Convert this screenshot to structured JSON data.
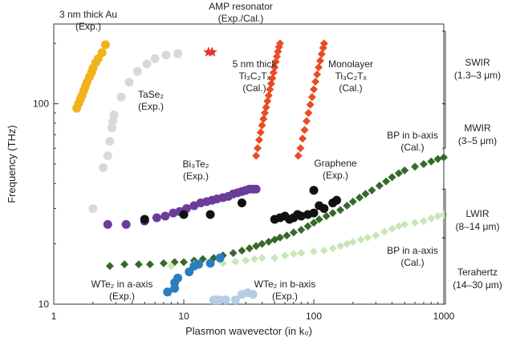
{
  "chart_data": {
    "type": "scatter",
    "xlabel": "Plasmon wavevector (in k₀)",
    "ylabel": "Frequency (THz)",
    "x_scale": "log",
    "y_scale": "log",
    "xlim": [
      1,
      1000
    ],
    "ylim": [
      10,
      250
    ],
    "x_ticks": [
      "1",
      "10",
      "100",
      "1000"
    ],
    "y_ticks": [
      "10",
      "100"
    ],
    "series": [
      {
        "label_lines": [
          "3 nm thick Au",
          "(Exp.)"
        ],
        "marker": "circle",
        "color": "#f2b21a",
        "points": [
          [
            1.5,
            95
          ],
          [
            1.55,
            100
          ],
          [
            1.6,
            105
          ],
          [
            1.65,
            110
          ],
          [
            1.7,
            116
          ],
          [
            1.75,
            122
          ],
          [
            1.8,
            128
          ],
          [
            1.88,
            136
          ],
          [
            1.95,
            143
          ],
          [
            2.0,
            150
          ],
          [
            2.1,
            160
          ],
          [
            2.2,
            168
          ],
          [
            2.35,
            180
          ],
          [
            2.5,
            197
          ]
        ]
      },
      {
        "label_lines": [
          "TaSe₂",
          "(Exp.)"
        ],
        "marker": "circle",
        "color": "#d9d9d9",
        "points": [
          [
            2.0,
            30
          ],
          [
            2.4,
            48
          ],
          [
            2.6,
            55
          ],
          [
            2.7,
            65
          ],
          [
            2.8,
            76
          ],
          [
            2.85,
            82
          ],
          [
            2.9,
            88
          ],
          [
            3.3,
            108
          ],
          [
            3.8,
            128
          ],
          [
            4.4,
            145
          ],
          [
            5.2,
            158
          ],
          [
            6.0,
            168
          ],
          [
            7.3,
            175
          ],
          [
            9,
            178
          ]
        ]
      },
      {
        "label_lines": [
          "AMP resonator",
          "(Exp./Cal.)"
        ],
        "marker": "star",
        "color": "#e8322c",
        "points": [
          [
            15.5,
            181
          ],
          [
            16.5,
            181
          ]
        ]
      },
      {
        "label_lines": [
          "5 nm thick",
          "Ti₃C₂Tₓ",
          "(Cal.)"
        ],
        "marker": "diamond",
        "color": "#ea4b24",
        "points": [
          [
            36,
            55
          ],
          [
            37,
            60
          ],
          [
            38,
            66
          ],
          [
            39,
            72
          ],
          [
            40,
            78
          ],
          [
            41,
            84
          ],
          [
            42,
            90
          ],
          [
            43,
            96
          ],
          [
            44,
            103
          ],
          [
            45,
            110
          ],
          [
            46,
            118
          ],
          [
            47,
            126
          ],
          [
            48,
            134
          ],
          [
            49,
            143
          ],
          [
            50,
            152
          ],
          [
            51,
            162
          ],
          [
            52,
            172
          ],
          [
            53,
            182
          ],
          [
            54,
            192
          ],
          [
            55,
            200
          ]
        ]
      },
      {
        "label_lines": [
          "Monolayer",
          "Ti₃C₂Tₓ",
          "(Cal.)"
        ],
        "marker": "diamond",
        "color": "#ea4b24",
        "points": [
          [
            76,
            55
          ],
          [
            79,
            60
          ],
          [
            82,
            67
          ],
          [
            85,
            74
          ],
          [
            88,
            82
          ],
          [
            91,
            90
          ],
          [
            94,
            99
          ],
          [
            97,
            108
          ],
          [
            100,
            118
          ],
          [
            103,
            129
          ],
          [
            106,
            140
          ],
          [
            109,
            152
          ],
          [
            112,
            164
          ],
          [
            115,
            177
          ],
          [
            118,
            190
          ],
          [
            120,
            200
          ]
        ]
      },
      {
        "label_lines": [
          "Bi₃Te₂",
          "(Exp.)"
        ],
        "marker": "circle",
        "color": "#6a3d9a",
        "points": [
          [
            2.6,
            25
          ],
          [
            3.6,
            25
          ],
          [
            5.0,
            26
          ],
          [
            6.2,
            27
          ],
          [
            7.2,
            27.5
          ],
          [
            8.3,
            28.5
          ],
          [
            9.3,
            29
          ],
          [
            10.5,
            30
          ],
          [
            12,
            31
          ],
          [
            13.5,
            32
          ],
          [
            15,
            32.5
          ],
          [
            16.5,
            33
          ],
          [
            18,
            33.5
          ],
          [
            20,
            34
          ],
          [
            22,
            34.5
          ],
          [
            24,
            35.5
          ],
          [
            26,
            36
          ],
          [
            28,
            36.5
          ],
          [
            30,
            37
          ],
          [
            32,
            37.5
          ],
          [
            34,
            37.5
          ],
          [
            36,
            37.5
          ]
        ]
      },
      {
        "label_lines": [
          "Graphene",
          "(Exp.)"
        ],
        "marker": "circle",
        "color": "#111111",
        "points": [
          [
            5,
            26.5
          ],
          [
            10,
            28
          ],
          [
            16,
            28
          ],
          [
            28,
            32
          ],
          [
            50,
            26.5
          ],
          [
            55,
            27
          ],
          [
            60,
            27.5
          ],
          [
            65,
            26.5
          ],
          [
            70,
            27
          ],
          [
            75,
            28
          ],
          [
            80,
            27.5
          ],
          [
            90,
            28
          ],
          [
            100,
            28.5
          ],
          [
            110,
            31
          ],
          [
            120,
            30
          ],
          [
            140,
            32
          ],
          [
            150,
            33
          ],
          [
            100,
            37
          ]
        ]
      },
      {
        "label_lines": [
          "BP in b-axis",
          "(Cal.)"
        ],
        "marker": "diamond",
        "color": "#356a2a",
        "points": [
          [
            2.7,
            15.5
          ],
          [
            3.5,
            15.8
          ],
          [
            4.5,
            15.8
          ],
          [
            5.5,
            15.8
          ],
          [
            7,
            16
          ],
          [
            8.5,
            16.2
          ],
          [
            10,
            16.2
          ],
          [
            12,
            16.5
          ],
          [
            14,
            16.8
          ],
          [
            17,
            17
          ],
          [
            20,
            17.5
          ],
          [
            24,
            18
          ],
          [
            28,
            18.5
          ],
          [
            32,
            19
          ],
          [
            36,
            19.5
          ],
          [
            40,
            20
          ],
          [
            45,
            20.5
          ],
          [
            50,
            21
          ],
          [
            55,
            21.5
          ],
          [
            62,
            22
          ],
          [
            70,
            22.8
          ],
          [
            80,
            23.5
          ],
          [
            90,
            24.5
          ],
          [
            100,
            25.5
          ],
          [
            110,
            26.5
          ],
          [
            125,
            27.5
          ],
          [
            140,
            28.5
          ],
          [
            160,
            29.5
          ],
          [
            180,
            31
          ],
          [
            200,
            32.5
          ],
          [
            225,
            34
          ],
          [
            250,
            35.5
          ],
          [
            280,
            37
          ],
          [
            320,
            39
          ],
          [
            360,
            41
          ],
          [
            400,
            43
          ],
          [
            450,
            45
          ],
          [
            500,
            46.5
          ],
          [
            600,
            48.5
          ],
          [
            700,
            50
          ],
          [
            800,
            51.5
          ],
          [
            900,
            53
          ],
          [
            1000,
            54
          ]
        ]
      },
      {
        "label_lines": [
          "BP in a-axis",
          "(Cal.)"
        ],
        "marker": "diamond",
        "color": "#c8e6b8",
        "points": [
          [
            8,
            15.5
          ],
          [
            12,
            15.8
          ],
          [
            16,
            16
          ],
          [
            20,
            16
          ],
          [
            25,
            16.3
          ],
          [
            30,
            16.5
          ],
          [
            35,
            16.8
          ],
          [
            40,
            17
          ],
          [
            50,
            17
          ],
          [
            60,
            17.5
          ],
          [
            70,
            17.8
          ],
          [
            80,
            18
          ],
          [
            100,
            18.3
          ],
          [
            120,
            18.5
          ],
          [
            140,
            19
          ],
          [
            160,
            19.5
          ],
          [
            180,
            20
          ],
          [
            200,
            20.5
          ],
          [
            230,
            21
          ],
          [
            260,
            21.5
          ],
          [
            300,
            22
          ],
          [
            350,
            23
          ],
          [
            400,
            23.8
          ],
          [
            450,
            24.5
          ],
          [
            500,
            25
          ],
          [
            600,
            25.5
          ],
          [
            700,
            26
          ],
          [
            800,
            26.8
          ],
          [
            900,
            27.5
          ],
          [
            1000,
            28
          ]
        ]
      },
      {
        "label_lines": [
          "WTe₂ in a-axis",
          "(Exp.)"
        ],
        "marker": "circle",
        "color": "#2a7ec0",
        "points": [
          [
            7.5,
            11.5
          ],
          [
            8.5,
            12
          ],
          [
            8.5,
            12.8
          ],
          [
            9,
            13.5
          ],
          [
            11,
            14.5
          ],
          [
            12,
            15.5
          ],
          [
            13,
            15.8
          ],
          [
            16,
            16
          ],
          [
            19,
            17
          ]
        ]
      },
      {
        "label_lines": [
          "WTe₂ in b-axis",
          "(Exp.)"
        ],
        "marker": "circle",
        "color": "#b4cce6",
        "points": [
          [
            17,
            10.5
          ],
          [
            18,
            10.5
          ],
          [
            19,
            10.5
          ],
          [
            21,
            10.5
          ],
          [
            25,
            10.5
          ],
          [
            28,
            11.2
          ],
          [
            31,
            11.4
          ],
          [
            34,
            11.2
          ]
        ]
      }
    ],
    "bands": [
      {
        "label_lines": [
          "SWIR",
          "(1.3–3 μm)"
        ],
        "range": [
          100,
          230
        ]
      },
      {
        "label_lines": [
          "MWIR",
          "(3–5 μm)"
        ],
        "range": [
          60,
          100
        ]
      },
      {
        "label_lines": [
          "LWIR",
          "(8–14 μm)"
        ],
        "range": [
          21.4,
          37.5
        ]
      },
      {
        "label_lines": [
          "Terahertz",
          "(14–30 μm)"
        ],
        "range": [
          10,
          21.4
        ]
      }
    ]
  }
}
